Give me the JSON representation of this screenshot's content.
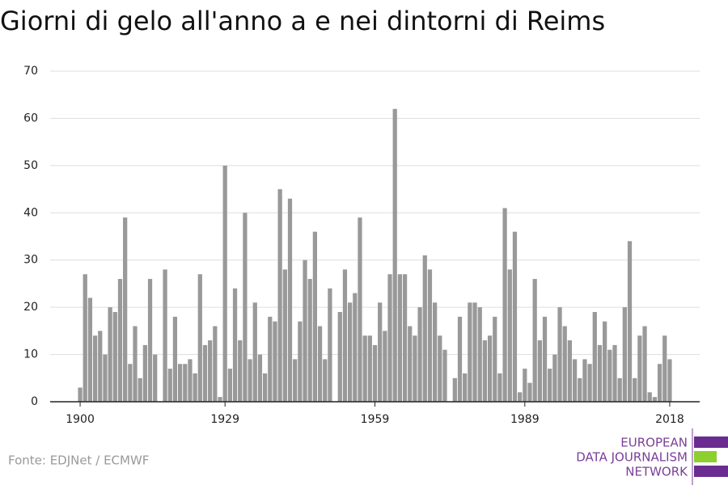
{
  "chart_data": {
    "type": "bar",
    "title": "Giorni di gelo all'anno a e nei dintorni di Reims",
    "x": [
      1900,
      1901,
      1902,
      1903,
      1904,
      1905,
      1906,
      1907,
      1908,
      1909,
      1910,
      1911,
      1912,
      1913,
      1914,
      1915,
      1916,
      1917,
      1918,
      1919,
      1920,
      1921,
      1922,
      1923,
      1924,
      1925,
      1926,
      1927,
      1928,
      1929,
      1930,
      1931,
      1932,
      1933,
      1934,
      1935,
      1936,
      1937,
      1938,
      1939,
      1940,
      1941,
      1942,
      1943,
      1944,
      1945,
      1946,
      1947,
      1948,
      1949,
      1950,
      1951,
      1952,
      1953,
      1954,
      1955,
      1956,
      1957,
      1958,
      1959,
      1960,
      1961,
      1962,
      1963,
      1964,
      1965,
      1966,
      1967,
      1968,
      1969,
      1970,
      1971,
      1972,
      1973,
      1974,
      1975,
      1976,
      1977,
      1978,
      1979,
      1980,
      1981,
      1982,
      1983,
      1984,
      1985,
      1986,
      1987,
      1988,
      1989,
      1990,
      1991,
      1992,
      1993,
      1994,
      1995,
      1996,
      1997,
      1998,
      1999,
      2000,
      2001,
      2002,
      2003,
      2004,
      2005,
      2006,
      2007,
      2008,
      2009,
      2010,
      2011,
      2012,
      2013,
      2014,
      2015,
      2016,
      2017,
      2018
    ],
    "values": [
      3,
      27,
      22,
      14,
      15,
      10,
      20,
      19,
      26,
      39,
      8,
      16,
      5,
      12,
      26,
      10,
      0,
      28,
      7,
      18,
      8,
      8,
      9,
      6,
      27,
      12,
      13,
      16,
      1,
      50,
      7,
      24,
      13,
      40,
      9,
      21,
      10,
      6,
      18,
      17,
      45,
      28,
      43,
      9,
      17,
      30,
      26,
      36,
      16,
      9,
      24,
      0,
      19,
      28,
      21,
      23,
      39,
      14,
      14,
      12,
      21,
      15,
      27,
      62,
      27,
      27,
      16,
      14,
      20,
      31,
      28,
      21,
      14,
      11,
      0,
      5,
      18,
      6,
      21,
      21,
      20,
      13,
      14,
      18,
      6,
      41,
      28,
      36,
      2,
      7,
      4,
      26,
      13,
      18,
      7,
      10,
      20,
      16,
      13,
      9,
      5,
      9,
      8,
      19,
      12,
      17,
      11,
      12,
      5,
      20,
      34,
      5,
      14,
      16,
      2,
      1,
      8,
      14,
      9
    ],
    "color": "#999999",
    "xlim": [
      1894,
      2024
    ],
    "xticks": [
      1900,
      1929,
      1959,
      1989,
      2018
    ],
    "ylim": [
      0,
      70
    ],
    "yticks": [
      0,
      10,
      20,
      30,
      40,
      50,
      60,
      70
    ],
    "grid": true,
    "source": "Fonte: EDJNet / ECMWF",
    "logo": [
      "EUROPEAN",
      "DATA JOURNALISM",
      "NETWORK"
    ]
  }
}
